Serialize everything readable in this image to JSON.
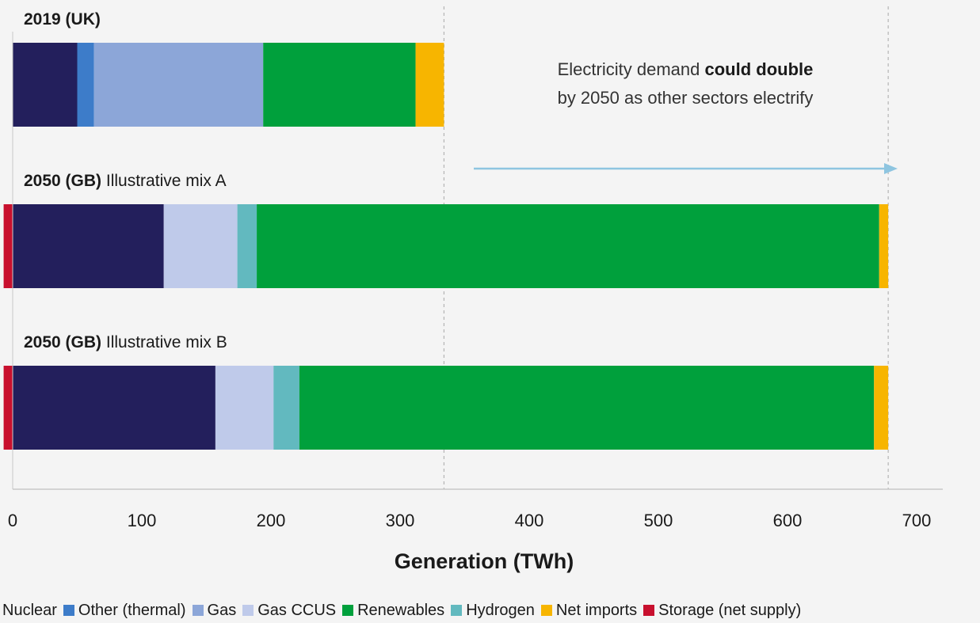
{
  "chart_data": {
    "type": "bar",
    "orientation": "horizontal",
    "stacked": true,
    "xlabel": "Generation (TWh)",
    "xlim": [
      0,
      700
    ],
    "xticks": [
      0,
      100,
      200,
      300,
      400,
      500,
      600,
      700
    ],
    "annotation": {
      "line1": "Electricity demand ",
      "line1_bold": "could double",
      "line2": "by 2050 as other sectors electrify"
    },
    "reference_lines": [
      334,
      678
    ],
    "segments": [
      {
        "name": "Storage (net supply)",
        "color": "#c8102e"
      },
      {
        "name": "Nuclear",
        "color": "#231f5c"
      },
      {
        "name": "Other (thermal)",
        "color": "#3d7cc9"
      },
      {
        "name": "Gas",
        "color": "#8ca6d8"
      },
      {
        "name": "Gas CCUS",
        "color": "#bfcaea"
      },
      {
        "name": "Hydrogen",
        "color": "#62b9bf"
      },
      {
        "name": "Renewables",
        "color": "#00a03c"
      },
      {
        "name": "Net imports",
        "color": "#f7b500"
      }
    ],
    "categories": [
      {
        "label_bold": "2019 (UK)",
        "label": "",
        "values": {
          "Nuclear": 50,
          "Other (thermal)": 13,
          "Gas": 131,
          "Renewables": 118,
          "Net imports": 22
        }
      },
      {
        "label_bold": "2050 (GB)",
        "label": " Illustrative mix A",
        "values": {
          "Storage (net supply)": 7,
          "Nuclear": 117,
          "Gas CCUS": 57,
          "Hydrogen": 15,
          "Renewables": 482,
          "Net imports": 7
        }
      },
      {
        "label_bold": "2050 (GB)",
        "label": " Illustrative mix B",
        "values": {
          "Storage (net supply)": 7,
          "Nuclear": 157,
          "Gas CCUS": 45,
          "Hydrogen": 20,
          "Renewables": 445,
          "Net imports": 11
        }
      }
    ]
  },
  "legend": [
    {
      "label": "Nuclear",
      "color": "#231f5c"
    },
    {
      "label": "Other (thermal)",
      "color": "#3d7cc9"
    },
    {
      "label": "Gas",
      "color": "#8ca6d8"
    },
    {
      "label": "Gas CCUS",
      "color": "#bfcaea"
    },
    {
      "label": "Renewables",
      "color": "#00a03c"
    },
    {
      "label": "Hydrogen",
      "color": "#62b9bf"
    },
    {
      "label": "Net imports",
      "color": "#f7b500"
    },
    {
      "label": "Storage (net supply)",
      "color": "#c8102e"
    }
  ]
}
